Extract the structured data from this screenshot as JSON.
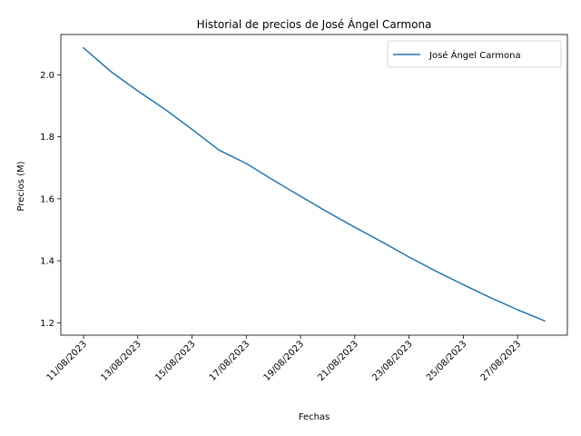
{
  "chart_data": {
    "type": "line",
    "title": "Historial de precios de José Ángel Carmona",
    "xlabel": "Fechas",
    "ylabel": "Precios (M)",
    "x": [
      "11/08/2023",
      "12/08/2023",
      "13/08/2023",
      "14/08/2023",
      "15/08/2023",
      "16/08/2023",
      "17/08/2023",
      "18/08/2023",
      "19/08/2023",
      "20/08/2023",
      "21/08/2023",
      "22/08/2023",
      "23/08/2023",
      "24/08/2023",
      "25/08/2023",
      "26/08/2023",
      "27/08/2023",
      "28/08/2023"
    ],
    "x_ticks": [
      "11/08/2023",
      "13/08/2023",
      "15/08/2023",
      "17/08/2023",
      "19/08/2023",
      "21/08/2023",
      "23/08/2023",
      "25/08/2023",
      "27/08/2023"
    ],
    "series": [
      {
        "name": "José Ángel Carmona",
        "color": "#1f77b4",
        "values": [
          2.087,
          2.011,
          1.948,
          1.889,
          1.824,
          1.757,
          1.714,
          1.66,
          1.608,
          1.557,
          1.508,
          1.461,
          1.412,
          1.366,
          1.323,
          1.281,
          1.242,
          1.206
        ]
      }
    ],
    "ylim": [
      1.16,
      2.13
    ],
    "y_ticks": [
      1.2,
      1.4,
      1.6,
      1.8,
      2.0
    ],
    "legend": "top-right",
    "grid": false
  }
}
